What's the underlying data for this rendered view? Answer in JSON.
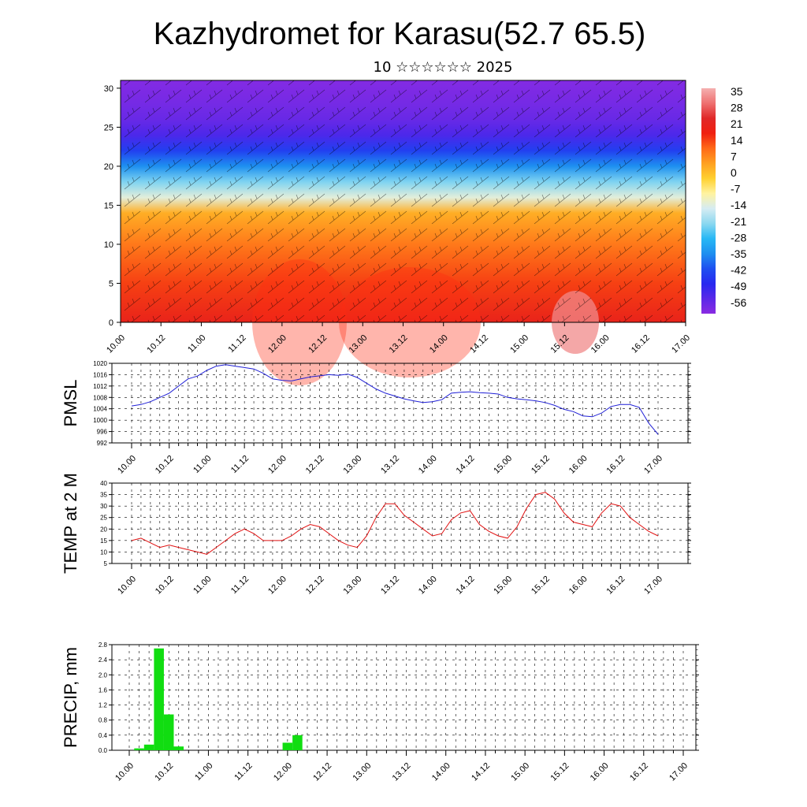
{
  "title": "Kazhydromet for Karasu(52.7 65.5)",
  "subtitle": "10 ☆☆☆☆☆☆ 2025",
  "time_labels": [
    "10.00",
    "10.12",
    "11.00",
    "11.12",
    "12.00",
    "12.12",
    "13.00",
    "13.12",
    "14.00",
    "14.12",
    "15.00",
    "15.12",
    "16.00",
    "16.12",
    "17.00"
  ],
  "colors": {
    "pmsl_line": "#1f1fd6",
    "temp_line": "#e01010",
    "precip_bar": "#11dd11"
  },
  "chart_data": [
    {
      "type": "heatmap",
      "title": "",
      "ylim": [
        0,
        31
      ],
      "yticks": [
        0,
        5,
        10,
        15,
        20,
        25,
        30
      ],
      "colorbar_labels": [
        "35",
        "28",
        "21",
        "14",
        "7",
        "0",
        "-7",
        "-14",
        "-21",
        "-28",
        "-35",
        "-42",
        "-49",
        "-56"
      ],
      "colorbar_range": [
        -63,
        42
      ],
      "layers": [
        {
          "level": 0,
          "value": 24
        },
        {
          "level": 5,
          "value": 18
        },
        {
          "level": 10,
          "value": 12
        },
        {
          "level": 14,
          "value": 5
        },
        {
          "level": 16,
          "value": -12
        },
        {
          "level": 18,
          "value": -22
        },
        {
          "level": 20,
          "value": -35
        },
        {
          "level": 22,
          "value": -45
        },
        {
          "level": 24,
          "value": -54
        },
        {
          "level": 26,
          "value": -58
        },
        {
          "level": 28,
          "value": -60
        },
        {
          "level": 31,
          "value": -62
        }
      ]
    },
    {
      "type": "line",
      "ylabel": "PMSL",
      "ylim": [
        992,
        1020
      ],
      "yticks": [
        992,
        996,
        1000,
        1004,
        1008,
        1012,
        1016,
        1020
      ],
      "x": [
        0,
        3,
        6,
        9,
        12,
        15,
        18,
        21,
        24,
        27,
        30,
        33,
        36,
        39,
        42,
        45,
        48,
        51,
        54,
        57,
        60,
        63,
        66,
        69,
        72,
        75,
        78,
        81,
        84,
        87,
        90,
        93,
        96,
        99,
        102,
        105,
        108,
        111,
        114,
        117,
        120,
        123,
        126,
        129,
        132,
        135,
        138,
        141,
        144,
        147,
        150,
        153,
        156,
        159,
        162,
        165,
        168
      ],
      "values": [
        1005,
        1005.5,
        1006.5,
        1008,
        1009.5,
        1012,
        1014.5,
        1015.5,
        1017.5,
        1019,
        1019.5,
        1019,
        1018.5,
        1018,
        1016.5,
        1014.5,
        1014,
        1013.8,
        1014.5,
        1015.2,
        1015.6,
        1016,
        1015.8,
        1016.2,
        1015,
        1013,
        1011,
        1009.5,
        1008.5,
        1007.5,
        1006.8,
        1006.2,
        1006.5,
        1007.2,
        1009.5,
        1009.8,
        1010,
        1009.7,
        1009.5,
        1009.2,
        1008,
        1007.5,
        1007.2,
        1006.8,
        1006.2,
        1005.2,
        1003.8,
        1003,
        1001.5,
        1001.2,
        1002.5,
        1004.8,
        1005.5,
        1005.5,
        1004.5,
        999,
        995
      ]
    },
    {
      "type": "line",
      "ylabel": "TEMP at 2 M",
      "ylim": [
        5,
        40
      ],
      "yticks": [
        5,
        10,
        15,
        20,
        25,
        30,
        35,
        40
      ],
      "x": [
        0,
        3,
        6,
        9,
        12,
        15,
        18,
        21,
        24,
        27,
        30,
        33,
        36,
        39,
        42,
        45,
        48,
        51,
        54,
        57,
        60,
        63,
        66,
        69,
        72,
        75,
        78,
        81,
        84,
        87,
        90,
        93,
        96,
        99,
        102,
        105,
        108,
        111,
        114,
        117,
        120,
        123,
        126,
        129,
        132,
        135,
        138,
        141,
        144,
        147,
        150,
        153,
        156,
        159,
        162,
        165,
        168
      ],
      "values": [
        15,
        16,
        14,
        12,
        13,
        12,
        11,
        10,
        9,
        12,
        15,
        18,
        20,
        18,
        15,
        15,
        15,
        17,
        20,
        22,
        21,
        18,
        15,
        13,
        12,
        17,
        25,
        31,
        31,
        26,
        23,
        20,
        17,
        18,
        24,
        27,
        28,
        22,
        19,
        17,
        16,
        21,
        29,
        35,
        36,
        33,
        27,
        23,
        22,
        21,
        27,
        31,
        30,
        25,
        22,
        19,
        17
      ]
    },
    {
      "type": "bar",
      "ylabel": "PRECIP, mm",
      "ylim": [
        0,
        2.8
      ],
      "yticks": [
        "0.0",
        "0.4",
        "0.8",
        "1.2",
        "1.6",
        "2.0",
        "2.4",
        "2.8"
      ],
      "x": [
        3,
        6,
        9,
        12,
        15,
        18,
        48,
        51,
        54
      ],
      "values": [
        0.05,
        0.15,
        2.7,
        0.95,
        0.1,
        0,
        0.2,
        0.4,
        0
      ]
    }
  ]
}
